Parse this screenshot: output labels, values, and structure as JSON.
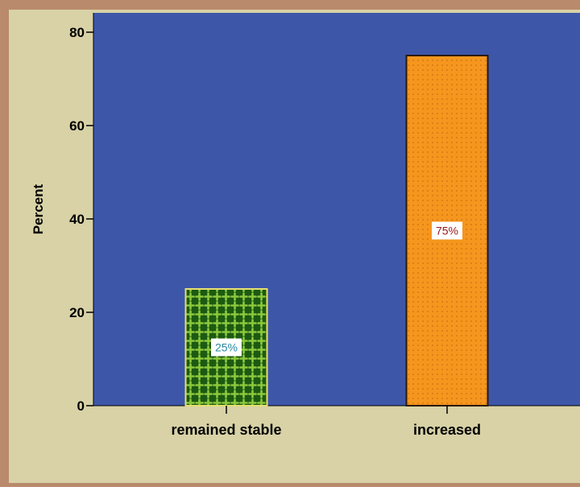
{
  "chart_data": {
    "type": "bar",
    "categories": [
      "remained stable",
      "increased"
    ],
    "values": [
      25,
      75
    ],
    "data_labels": [
      "25%",
      "75%"
    ],
    "xlabel": "",
    "ylabel": "Percent",
    "ylim": [
      0,
      80
    ],
    "yticks": [
      0,
      20,
      40,
      60,
      80
    ],
    "grid": false,
    "colors": {
      "frame_border": "#b98a6c",
      "outer_background": "#d8d2a6",
      "plot_background": "#3d56a8",
      "bar_remained_stable": "#1d5a12",
      "bar_remained_stable_pattern": "#8cc83c",
      "bar_increased": "#f5961e",
      "bar_increased_pattern": "#c4660f",
      "label_remained_stable_text": "#2a8aa0",
      "label_increased_text": "#9a1818"
    }
  }
}
